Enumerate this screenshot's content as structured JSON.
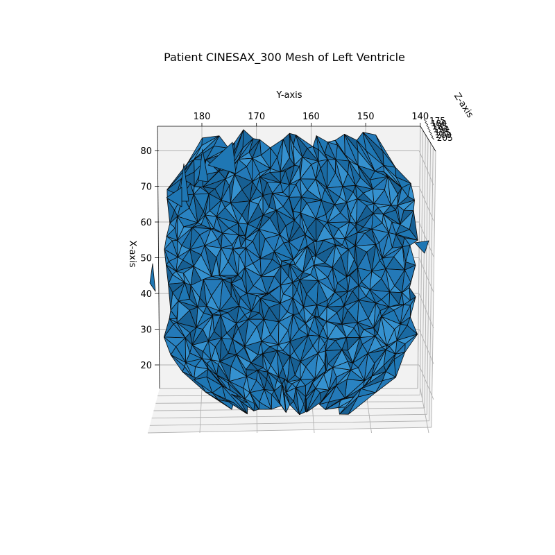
{
  "chart_data": {
    "type": "3d-mesh",
    "title": "Patient CINESAX_300 Mesh of Left Ventricle",
    "xlabel": "Y-axis",
    "ylabel": "X-axis",
    "zlabel": "Z-axis",
    "y_axis": {
      "ticks": [
        180,
        170,
        160,
        150,
        140
      ],
      "range": [
        140,
        187
      ]
    },
    "x_axis": {
      "ticks": [
        20,
        30,
        40,
        50,
        60,
        70,
        80
      ],
      "range": [
        14,
        86
      ]
    },
    "z_axis": {
      "ticks": [
        175,
        180,
        185,
        190,
        195,
        200,
        205
      ],
      "range": [
        173,
        207
      ]
    },
    "mesh_color": "#1f77b4",
    "edge_color": "#000000",
    "grid": true
  }
}
